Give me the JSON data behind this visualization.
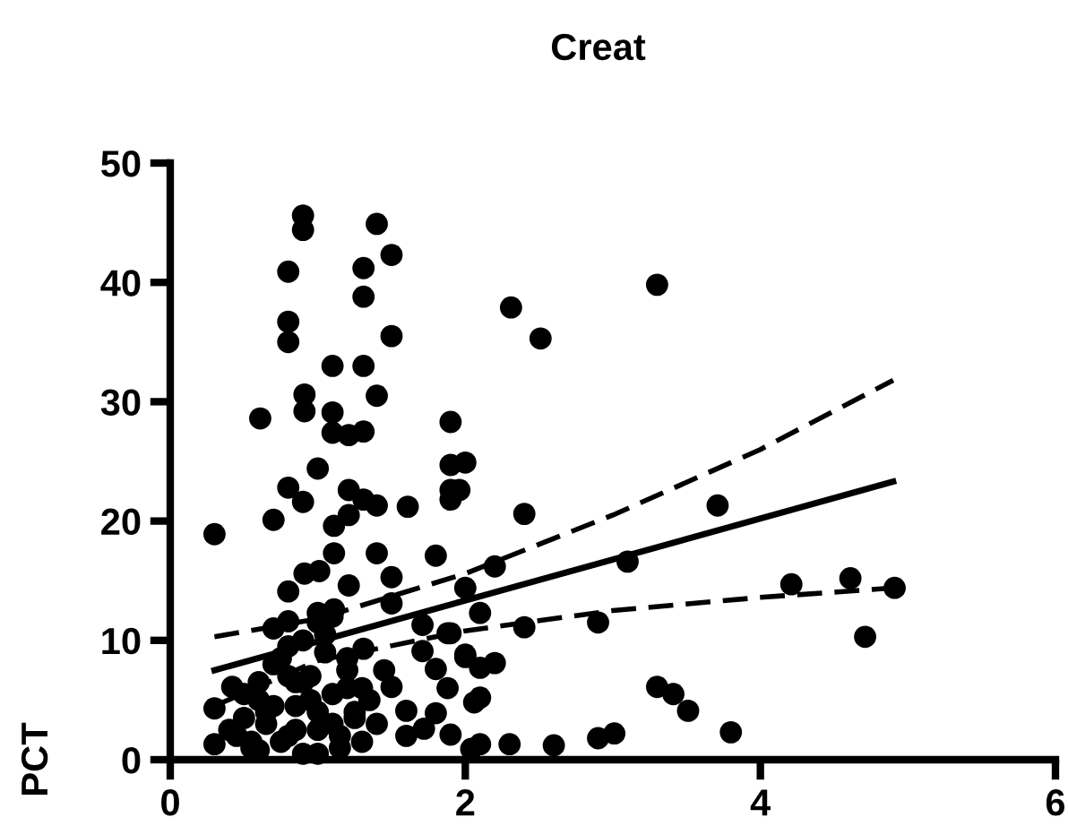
{
  "chart_data": {
    "type": "scatter",
    "title": "Creat",
    "ylabel": "PCT",
    "xlim": [
      0,
      6
    ],
    "xticks": [
      0,
      2,
      4,
      6
    ],
    "ylim": [
      0,
      50
    ],
    "yticks": [
      0,
      10,
      20,
      30,
      40,
      50
    ],
    "grid": false,
    "legend": false,
    "series": [
      {
        "color": "#000000",
        "marker": "circle",
        "x": [
          3.3,
          2.31,
          2.51,
          3.71,
          2.4,
          2.2,
          3.1,
          4.21,
          4.61,
          4.91,
          4.71,
          2.4,
          2.9,
          3.3,
          3.41,
          3.51,
          3.8,
          2.9,
          3.01,
          2.6,
          2.3,
          2.1,
          2.1,
          2.2,
          2.1,
          2.0,
          2.1,
          2.0,
          1.88,
          1.88,
          1.9,
          2.0,
          1.9,
          1.9,
          0.9,
          0.9,
          1.4,
          0.8,
          1.31,
          1.5,
          1.31,
          0.8,
          0.8,
          1.5,
          1.1,
          1.31,
          0.91,
          0.91,
          1.4,
          0.61,
          1.1,
          1.1,
          1.21,
          1.31,
          1.9,
          1.0,
          0.8,
          0.9,
          1.21,
          1.31,
          1.4,
          1.61,
          1.96,
          0.7,
          0.3,
          1.11,
          1.21,
          1.11,
          1.4,
          1.8,
          0.91,
          1.01,
          0.8,
          1.21,
          1.5,
          1.5,
          1.0,
          1.11,
          0.8,
          1.71,
          1.9,
          1.31,
          1.71,
          2.0,
          1.8,
          1.5,
          0.42,
          0.3,
          1.6,
          1.8,
          2.06,
          1.72,
          1.9,
          2.04,
          0.3,
          0.45,
          0.5,
          0.55,
          0.6,
          0.65,
          0.7,
          0.75,
          0.8,
          0.85,
          0.9,
          0.95,
          1.0,
          1.05,
          1.1,
          1.15,
          1.2,
          1.25,
          1.3,
          0.5,
          0.6,
          0.7,
          0.8,
          0.9,
          1.0,
          1.1,
          1.2,
          1.3,
          0.55,
          0.65,
          0.75,
          0.85,
          0.95,
          1.05,
          1.15,
          1.25,
          0.4,
          0.6,
          0.8,
          1.0,
          1.2,
          1.4,
          0.7,
          0.9,
          1.1,
          0.85,
          1.0,
          1.6,
          1.45,
          1.35
        ],
        "values": [
          39.8,
          37.9,
          35.3,
          21.3,
          20.6,
          16.2,
          16.6,
          14.7,
          15.2,
          14.4,
          10.3,
          11.1,
          11.5,
          6.1,
          5.5,
          4.1,
          2.3,
          1.8,
          2.2,
          1.2,
          1.3,
          1.3,
          5.2,
          8.1,
          7.7,
          8.6,
          12.3,
          14.4,
          10.6,
          6.0,
          28.3,
          24.9,
          22.6,
          21.8,
          45.6,
          44.4,
          44.9,
          40.9,
          41.2,
          42.3,
          38.8,
          36.7,
          35.0,
          35.5,
          33.0,
          33.0,
          30.6,
          29.2,
          30.5,
          28.6,
          29.1,
          27.4,
          27.2,
          27.5,
          24.7,
          24.4,
          22.8,
          21.6,
          22.6,
          21.8,
          21.3,
          21.2,
          22.6,
          20.1,
          18.9,
          19.6,
          20.5,
          17.3,
          17.3,
          17.1,
          15.6,
          15.8,
          14.1,
          14.6,
          15.3,
          13.1,
          12.3,
          12.6,
          11.6,
          11.3,
          10.6,
          9.3,
          9.1,
          8.8,
          7.6,
          6.1,
          6.1,
          4.3,
          4.1,
          3.9,
          4.8,
          2.6,
          2.1,
          0.9,
          1.3,
          2.0,
          5.5,
          1.0,
          6.5,
          3.0,
          8.0,
          1.5,
          9.5,
          4.5,
          0.5,
          7.0,
          2.5,
          10.5,
          5.5,
          1.0,
          8.5,
          3.5,
          6.0,
          3.5,
          0.8,
          4.5,
          2.0,
          6.5,
          0.5,
          3.0,
          7.5,
          1.5,
          1.5,
          4.0,
          8.5,
          2.5,
          5.0,
          9.0,
          2.0,
          4.0,
          2.5,
          5.0,
          7.0,
          4.0,
          6.0,
          3.0,
          11.0,
          10.0,
          12.0,
          6.5,
          11.5,
          2.0,
          7.5,
          5.0
        ]
      },
      {
        "type": "line",
        "color": "#000000",
        "line_style": "solid",
        "x": [
          0.3,
          4.9
        ],
        "values": [
          7.5,
          23.3
        ]
      },
      {
        "type": "line",
        "color": "#000000",
        "line_style": "dashed",
        "x": [
          0.3,
          1.0,
          2.0,
          3.0,
          4.0,
          4.9
        ],
        "values": [
          10.3,
          11.8,
          15.6,
          20.5,
          26.0,
          31.8
        ]
      },
      {
        "type": "line",
        "color": "#000000",
        "line_style": "dashed",
        "x": [
          0.3,
          1.0,
          2.0,
          3.0,
          4.0,
          4.9
        ],
        "values": [
          4.5,
          8.3,
          10.8,
          12.5,
          13.6,
          14.4
        ]
      }
    ]
  }
}
